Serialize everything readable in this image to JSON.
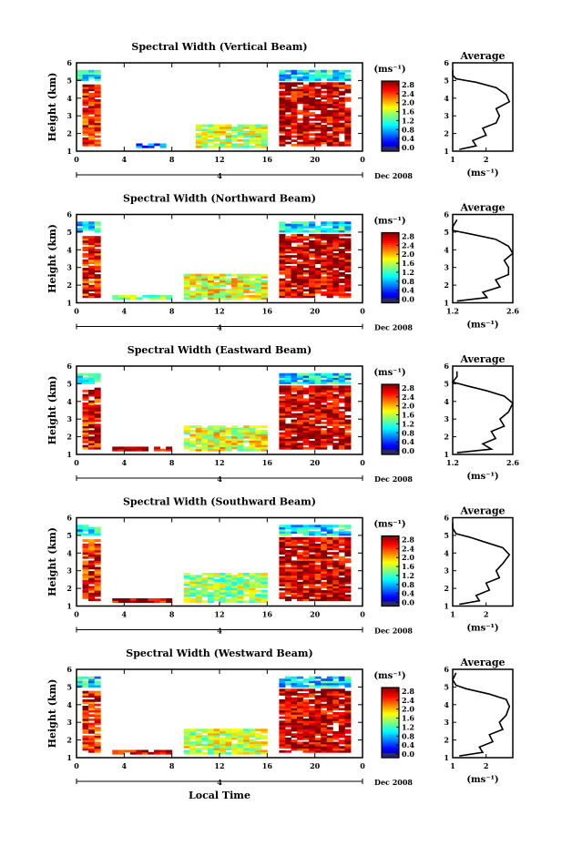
{
  "chart_data": [
    {
      "type": "heatmap",
      "title": "Spectral Width (Vertical Beam)",
      "ylabel": "Height (km)",
      "xlim": [
        0,
        24
      ],
      "ylim": [
        1,
        6
      ],
      "x_ticks": [
        "0",
        "4",
        "8",
        "12",
        "16",
        "20",
        "0"
      ],
      "y_ticks": [
        "1",
        "2",
        "3",
        "4",
        "5",
        "6"
      ],
      "date_axis": {
        "label": "4",
        "date": "Dec 2008"
      },
      "colorbar": {
        "unit": "(ms⁻¹)",
        "ticks": [
          "2.8",
          "2.4",
          "2.0",
          "1.6",
          "1.2",
          "0.8",
          "0.4",
          "0.0"
        ],
        "range": [
          0,
          2.8
        ]
      },
      "regions": [
        {
          "x": [
            0,
            2.0
          ],
          "y": [
            5.0,
            5.5
          ],
          "value": 1.0
        },
        {
          "x": [
            0.5,
            2.0
          ],
          "y": [
            1.3,
            4.7
          ],
          "value": 2.4
        },
        {
          "x": [
            5.0,
            7.5
          ],
          "y": [
            1.2,
            1.4
          ],
          "value": 0.5
        },
        {
          "x": [
            10.0,
            16.0
          ],
          "y": [
            1.2,
            2.5
          ],
          "value": 1.6
        },
        {
          "x": [
            17.0,
            23.0
          ],
          "y": [
            5.0,
            5.5
          ],
          "value": 1.0
        },
        {
          "x": [
            17.0,
            23.0
          ],
          "y": [
            1.3,
            4.8
          ],
          "value": 2.6
        }
      ],
      "profile": {
        "title": "Average",
        "xlabel": "(ms⁻¹)",
        "x_ticks": [
          "1",
          "2"
        ],
        "xlim": [
          1,
          2.8
        ],
        "points": [
          [
            1.2,
            1.1
          ],
          [
            1.7,
            1.3
          ],
          [
            1.6,
            1.6
          ],
          [
            2.0,
            1.9
          ],
          [
            1.9,
            2.3
          ],
          [
            2.3,
            2.6
          ],
          [
            2.4,
            3.0
          ],
          [
            2.3,
            3.4
          ],
          [
            2.7,
            3.8
          ],
          [
            2.6,
            4.2
          ],
          [
            2.3,
            4.6
          ],
          [
            1.7,
            4.9
          ],
          [
            1.1,
            5.1
          ],
          [
            1.0,
            5.3
          ],
          [
            1.0,
            5.6
          ]
        ]
      }
    },
    {
      "type": "heatmap",
      "title": "Spectral Width (Northward Beam)",
      "ylabel": "Height (km)",
      "xlim": [
        0,
        24
      ],
      "ylim": [
        1,
        6
      ],
      "x_ticks": [
        "0",
        "4",
        "8",
        "12",
        "16",
        "20",
        "0"
      ],
      "y_ticks": [
        "1",
        "2",
        "3",
        "4",
        "5",
        "6"
      ],
      "date_axis": {
        "label": "4",
        "date": "Dec 2008"
      },
      "colorbar": {
        "unit": "(ms⁻¹)",
        "ticks": [
          "2.8",
          "2.4",
          "2.0",
          "1.6",
          "1.2",
          "0.8",
          "0.4",
          "0.0"
        ],
        "range": [
          0,
          2.8
        ]
      },
      "regions": [
        {
          "x": [
            0,
            2.0
          ],
          "y": [
            5.0,
            5.5
          ],
          "value": 1.0
        },
        {
          "x": [
            0.5,
            2.0
          ],
          "y": [
            1.3,
            4.7
          ],
          "value": 2.4
        },
        {
          "x": [
            3.0,
            8.0
          ],
          "y": [
            1.2,
            1.4
          ],
          "value": 1.4
        },
        {
          "x": [
            9.0,
            16.0
          ],
          "y": [
            1.2,
            2.6
          ],
          "value": 1.7
        },
        {
          "x": [
            17.0,
            23.0
          ],
          "y": [
            5.0,
            5.5
          ],
          "value": 1.0
        },
        {
          "x": [
            17.0,
            23.0
          ],
          "y": [
            1.3,
            4.8
          ],
          "value": 2.6
        }
      ],
      "profile": {
        "title": "Average",
        "xlabel": "(ms⁻¹)",
        "x_ticks": [
          "1.2",
          "2.6"
        ],
        "xlim": [
          1.2,
          2.6
        ],
        "points": [
          [
            1.3,
            1.1
          ],
          [
            2.0,
            1.3
          ],
          [
            1.9,
            1.6
          ],
          [
            2.3,
            1.9
          ],
          [
            2.2,
            2.3
          ],
          [
            2.5,
            2.6
          ],
          [
            2.5,
            3.0
          ],
          [
            2.4,
            3.4
          ],
          [
            2.6,
            3.8
          ],
          [
            2.5,
            4.2
          ],
          [
            2.2,
            4.6
          ],
          [
            1.6,
            4.9
          ],
          [
            1.2,
            5.1
          ],
          [
            1.2,
            5.3
          ],
          [
            1.3,
            5.7
          ]
        ]
      }
    },
    {
      "type": "heatmap",
      "title": "Spectral Width (Eastward Beam)",
      "ylabel": "Height (km)",
      "xlim": [
        0,
        24
      ],
      "ylim": [
        1,
        6
      ],
      "x_ticks": [
        "0",
        "4",
        "8",
        "12",
        "16",
        "20",
        "0"
      ],
      "y_ticks": [
        "1",
        "2",
        "3",
        "4",
        "5",
        "6"
      ],
      "date_axis": {
        "label": "4",
        "date": "Dec 2008"
      },
      "colorbar": {
        "unit": "(ms⁻¹)",
        "ticks": [
          "2.8",
          "2.4",
          "2.0",
          "1.6",
          "1.2",
          "0.8",
          "0.4",
          "0.0"
        ],
        "range": [
          0,
          2.8
        ]
      },
      "regions": [
        {
          "x": [
            0,
            2.0
          ],
          "y": [
            5.0,
            5.5
          ],
          "value": 1.0
        },
        {
          "x": [
            0.5,
            2.0
          ],
          "y": [
            1.3,
            4.7
          ],
          "value": 2.4
        },
        {
          "x": [
            3.0,
            8.0
          ],
          "y": [
            1.2,
            1.4
          ],
          "value": 2.6
        },
        {
          "x": [
            9.0,
            16.0
          ],
          "y": [
            1.2,
            2.6
          ],
          "value": 1.7
        },
        {
          "x": [
            17.0,
            23.0
          ],
          "y": [
            5.0,
            5.5
          ],
          "value": 1.0
        },
        {
          "x": [
            17.0,
            23.0
          ],
          "y": [
            1.3,
            4.8
          ],
          "value": 2.6
        }
      ],
      "profile": {
        "title": "Average",
        "xlabel": "(ms⁻¹)",
        "x_ticks": [
          "1.2",
          "2.6"
        ],
        "xlim": [
          1.2,
          2.6
        ],
        "points": [
          [
            1.3,
            1.1
          ],
          [
            2.1,
            1.3
          ],
          [
            1.9,
            1.6
          ],
          [
            2.2,
            1.9
          ],
          [
            2.1,
            2.3
          ],
          [
            2.4,
            2.6
          ],
          [
            2.3,
            3.0
          ],
          [
            2.5,
            3.4
          ],
          [
            2.6,
            3.9
          ],
          [
            2.4,
            4.3
          ],
          [
            2.0,
            4.6
          ],
          [
            1.5,
            4.9
          ],
          [
            1.2,
            5.1
          ],
          [
            1.3,
            5.4
          ],
          [
            1.3,
            5.7
          ]
        ]
      }
    },
    {
      "type": "heatmap",
      "title": "Spectral Width (Southward Beam)",
      "ylabel": "Height (km)",
      "xlim": [
        0,
        24
      ],
      "ylim": [
        1,
        6
      ],
      "x_ticks": [
        "0",
        "4",
        "8",
        "12",
        "16",
        "20",
        "0"
      ],
      "y_ticks": [
        "1",
        "2",
        "3",
        "4",
        "5",
        "6"
      ],
      "date_axis": {
        "label": "4",
        "date": "Dec 2008"
      },
      "colorbar": {
        "unit": "(ms⁻¹)",
        "ticks": [
          "2.8",
          "2.4",
          "2.0",
          "1.6",
          "1.2",
          "0.8",
          "0.4",
          "0.0"
        ],
        "range": [
          0,
          2.8
        ]
      },
      "regions": [
        {
          "x": [
            0,
            2.0
          ],
          "y": [
            5.0,
            5.5
          ],
          "value": 1.0
        },
        {
          "x": [
            0.5,
            2.0
          ],
          "y": [
            1.3,
            4.7
          ],
          "value": 2.4
        },
        {
          "x": [
            3.0,
            8.0
          ],
          "y": [
            1.2,
            1.4
          ],
          "value": 2.6
        },
        {
          "x": [
            9.0,
            16.0
          ],
          "y": [
            1.2,
            2.8
          ],
          "value": 1.5
        },
        {
          "x": [
            17.0,
            23.0
          ],
          "y": [
            5.0,
            5.5
          ],
          "value": 1.0
        },
        {
          "x": [
            17.0,
            23.0
          ],
          "y": [
            1.3,
            4.8
          ],
          "value": 2.6
        }
      ],
      "profile": {
        "title": "Average",
        "xlabel": "(ms⁻¹)",
        "x_ticks": [
          "1",
          "2"
        ],
        "xlim": [
          1,
          2.8
        ],
        "points": [
          [
            1.2,
            1.1
          ],
          [
            1.8,
            1.3
          ],
          [
            1.7,
            1.6
          ],
          [
            2.1,
            1.9
          ],
          [
            2.0,
            2.3
          ],
          [
            2.4,
            2.6
          ],
          [
            2.3,
            3.0
          ],
          [
            2.5,
            3.4
          ],
          [
            2.7,
            3.9
          ],
          [
            2.5,
            4.3
          ],
          [
            2.0,
            4.6
          ],
          [
            1.5,
            4.9
          ],
          [
            1.1,
            5.1
          ],
          [
            1.0,
            5.4
          ],
          [
            1.0,
            5.7
          ]
        ]
      }
    },
    {
      "type": "heatmap",
      "title": "Spectral Width (Westward Beam)",
      "ylabel": "Height (km)",
      "xlabel": "Local Time",
      "xlim": [
        0,
        24
      ],
      "ylim": [
        1,
        6
      ],
      "x_ticks": [
        "0",
        "4",
        "8",
        "12",
        "16",
        "20",
        "0"
      ],
      "y_ticks": [
        "1",
        "2",
        "3",
        "4",
        "5",
        "6"
      ],
      "date_axis": {
        "label": "4",
        "date": "Dec 2008"
      },
      "colorbar": {
        "unit": "(ms⁻¹)",
        "ticks": [
          "2.8",
          "2.4",
          "2.0",
          "1.6",
          "1.2",
          "0.8",
          "0.4",
          "0.0"
        ],
        "range": [
          0,
          2.8
        ]
      },
      "regions": [
        {
          "x": [
            0,
            2.0
          ],
          "y": [
            5.0,
            5.5
          ],
          "value": 1.0
        },
        {
          "x": [
            0.5,
            2.0
          ],
          "y": [
            1.3,
            4.7
          ],
          "value": 2.4
        },
        {
          "x": [
            3.0,
            8.0
          ],
          "y": [
            1.2,
            1.4
          ],
          "value": 2.6
        },
        {
          "x": [
            9.0,
            16.0
          ],
          "y": [
            1.2,
            2.6
          ],
          "value": 1.6
        },
        {
          "x": [
            17.0,
            23.0
          ],
          "y": [
            5.0,
            5.5
          ],
          "value": 1.0
        },
        {
          "x": [
            17.0,
            23.0
          ],
          "y": [
            1.3,
            4.8
          ],
          "value": 2.6
        }
      ],
      "profile": {
        "title": "Average",
        "xlabel": "(ms⁻¹)",
        "x_ticks": [
          "1",
          "2"
        ],
        "xlim": [
          1,
          2.8
        ],
        "points": [
          [
            1.2,
            1.1
          ],
          [
            1.9,
            1.3
          ],
          [
            1.8,
            1.6
          ],
          [
            2.2,
            1.9
          ],
          [
            2.1,
            2.3
          ],
          [
            2.5,
            2.6
          ],
          [
            2.4,
            3.0
          ],
          [
            2.6,
            3.4
          ],
          [
            2.7,
            3.9
          ],
          [
            2.6,
            4.3
          ],
          [
            2.1,
            4.6
          ],
          [
            1.4,
            4.9
          ],
          [
            1.1,
            5.1
          ],
          [
            1.0,
            5.4
          ],
          [
            1.1,
            5.8
          ]
        ]
      }
    }
  ]
}
